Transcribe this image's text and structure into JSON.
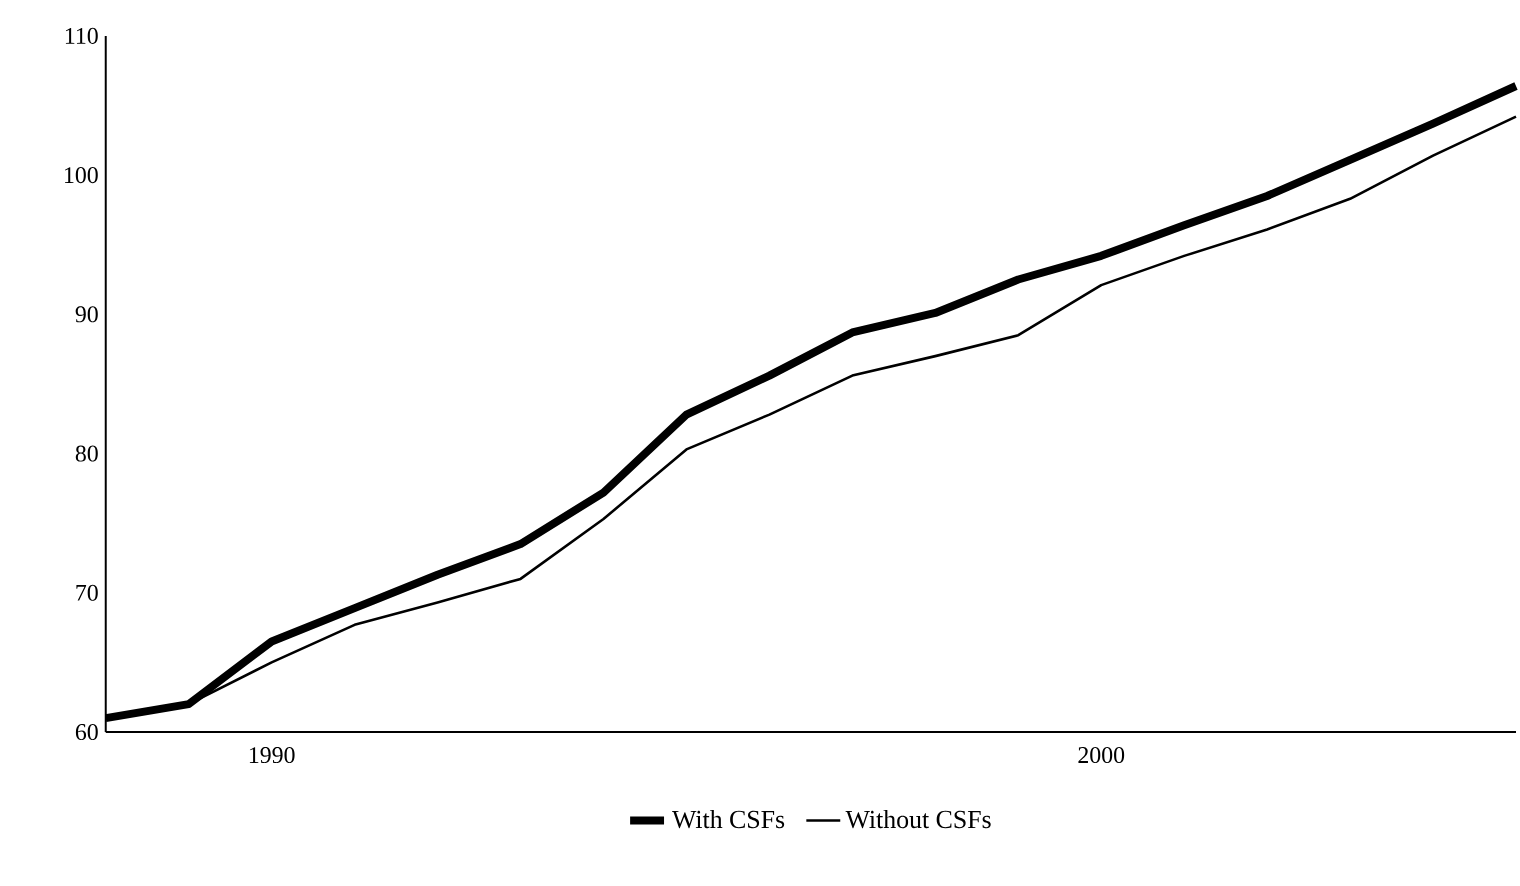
{
  "chart_data": {
    "type": "line",
    "x": [
      1988,
      1989,
      1990,
      1991,
      1992,
      1993,
      1994,
      1995,
      1996,
      1997,
      1998,
      1999,
      2000,
      2001,
      2002,
      2003,
      2004,
      2005
    ],
    "series": [
      {
        "name": "With CSFs",
        "color": "#000000",
        "values": [
          61,
          62,
          66.5,
          68.9,
          71.3,
          73.5,
          77.2,
          82.8,
          85.6,
          88.7,
          90.1,
          92.5,
          94.2,
          96.4,
          98.5,
          101.1,
          103.7,
          106.4
        ]
      },
      {
        "name": "Without CSFs",
        "color": "#000000",
        "values": [
          61,
          62,
          65,
          67.7,
          69.3,
          71,
          75.3,
          80.3,
          82.8,
          85.6,
          87,
          88.5,
          92.1,
          94.2,
          96.1,
          98.3,
          101.4,
          104.2
        ]
      }
    ],
    "xlim": [
      1988,
      2005
    ],
    "ylim": [
      60,
      110
    ],
    "xticks": [
      1990,
      2000
    ],
    "yticks": [
      60,
      70,
      80,
      90,
      100,
      110
    ],
    "grid": false,
    "legend": "bottom",
    "marker": "none",
    "line_style": "solid"
  }
}
